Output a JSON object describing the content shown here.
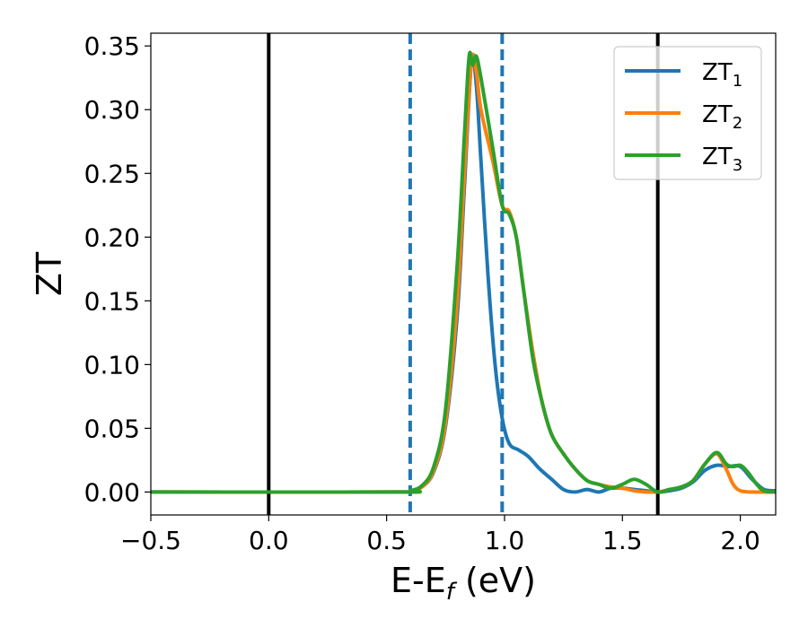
{
  "chart_data": {
    "type": "line",
    "title": "",
    "xlabel": {
      "main": "E-E",
      "sub": "f",
      "suffix": " (eV)"
    },
    "ylabel": "ZT",
    "xlim": [
      -0.5,
      2.15
    ],
    "ylim": [
      -0.018,
      0.36
    ],
    "x_ticks": [
      -0.5,
      0.0,
      0.5,
      1.0,
      1.5,
      2.0
    ],
    "x_tick_labels": [
      "−0.5",
      "0.0",
      "0.5",
      "1.0",
      "1.5",
      "2.0"
    ],
    "y_ticks": [
      0.0,
      0.05,
      0.1,
      0.15,
      0.2,
      0.25,
      0.3,
      0.35
    ],
    "y_tick_labels": [
      "0.00",
      "0.05",
      "0.10",
      "0.15",
      "0.20",
      "0.25",
      "0.30",
      "0.35"
    ],
    "grid": false,
    "legend_position": "top-right",
    "vertical_lines": [
      {
        "x": 0.0,
        "style": "solid",
        "color": "#000000"
      },
      {
        "x": 1.65,
        "style": "solid",
        "color": "#000000"
      },
      {
        "x": 0.6,
        "style": "dashed",
        "color": "#1f77b4"
      },
      {
        "x": 0.99,
        "style": "dashed",
        "color": "#1f77b4"
      }
    ],
    "series": [
      {
        "name": "ZT",
        "sub": "1",
        "color": "#1f77b4",
        "points": [
          [
            -0.5,
            0
          ],
          [
            0.55,
            0
          ],
          [
            0.6,
            0.001
          ],
          [
            0.65,
            0.004
          ],
          [
            0.7,
            0.016
          ],
          [
            0.75,
            0.052
          ],
          [
            0.8,
            0.14
          ],
          [
            0.83,
            0.24
          ],
          [
            0.86,
            0.338
          ],
          [
            0.88,
            0.32
          ],
          [
            0.9,
            0.26
          ],
          [
            0.93,
            0.17
          ],
          [
            0.96,
            0.1
          ],
          [
            0.99,
            0.058
          ],
          [
            1.02,
            0.038
          ],
          [
            1.06,
            0.033
          ],
          [
            1.1,
            0.028
          ],
          [
            1.15,
            0.018
          ],
          [
            1.2,
            0.01
          ],
          [
            1.25,
            0.002
          ],
          [
            1.3,
            0.0
          ],
          [
            1.35,
            0.002
          ],
          [
            1.4,
            0.0
          ],
          [
            1.45,
            0.003
          ],
          [
            1.5,
            0.003
          ],
          [
            1.55,
            0.002
          ],
          [
            1.6,
            0.001
          ],
          [
            1.65,
            0.0
          ],
          [
            1.7,
            0.001
          ],
          [
            1.75,
            0.003
          ],
          [
            1.8,
            0.008
          ],
          [
            1.85,
            0.017
          ],
          [
            1.9,
            0.021
          ],
          [
            1.95,
            0.02
          ],
          [
            2.0,
            0.02
          ],
          [
            2.05,
            0.01
          ],
          [
            2.1,
            0.002
          ],
          [
            2.15,
            0.001
          ]
        ]
      },
      {
        "name": "ZT",
        "sub": "2",
        "color": "#ff7f0e",
        "points": [
          [
            -0.5,
            0
          ],
          [
            0.55,
            0
          ],
          [
            0.6,
            0.001
          ],
          [
            0.65,
            0.004
          ],
          [
            0.7,
            0.017
          ],
          [
            0.75,
            0.055
          ],
          [
            0.8,
            0.15
          ],
          [
            0.83,
            0.25
          ],
          [
            0.86,
            0.338
          ],
          [
            0.88,
            0.33
          ],
          [
            0.9,
            0.3
          ],
          [
            0.95,
            0.26
          ],
          [
            0.99,
            0.225
          ],
          [
            1.02,
            0.22
          ],
          [
            1.05,
            0.2
          ],
          [
            1.08,
            0.16
          ],
          [
            1.12,
            0.11
          ],
          [
            1.16,
            0.07
          ],
          [
            1.2,
            0.045
          ],
          [
            1.25,
            0.03
          ],
          [
            1.3,
            0.018
          ],
          [
            1.35,
            0.009
          ],
          [
            1.4,
            0.006
          ],
          [
            1.45,
            0.004
          ],
          [
            1.5,
            0.003
          ],
          [
            1.55,
            0.001
          ],
          [
            1.6,
            0.0
          ],
          [
            1.65,
            0.0
          ],
          [
            1.7,
            0.002
          ],
          [
            1.75,
            0.004
          ],
          [
            1.8,
            0.009
          ],
          [
            1.85,
            0.022
          ],
          [
            1.9,
            0.03
          ],
          [
            1.94,
            0.018
          ],
          [
            1.97,
            0.006
          ],
          [
            2.0,
            0.001
          ],
          [
            2.05,
            0.0
          ],
          [
            2.15,
            0.0
          ]
        ]
      },
      {
        "name": "ZT",
        "sub": "3",
        "color": "#2ca02c",
        "points": [
          [
            -0.5,
            0
          ],
          [
            0.55,
            0
          ],
          [
            0.6,
            0.001
          ],
          [
            0.65,
            0.005
          ],
          [
            0.7,
            0.02
          ],
          [
            0.75,
            0.065
          ],
          [
            0.8,
            0.18
          ],
          [
            0.83,
            0.28
          ],
          [
            0.85,
            0.342
          ],
          [
            0.865,
            0.335
          ],
          [
            0.88,
            0.342
          ],
          [
            0.9,
            0.325
          ],
          [
            0.95,
            0.27
          ],
          [
            0.99,
            0.225
          ],
          [
            1.02,
            0.218
          ],
          [
            1.05,
            0.2
          ],
          [
            1.08,
            0.16
          ],
          [
            1.12,
            0.105
          ],
          [
            1.16,
            0.07
          ],
          [
            1.2,
            0.045
          ],
          [
            1.25,
            0.03
          ],
          [
            1.3,
            0.018
          ],
          [
            1.35,
            0.009
          ],
          [
            1.4,
            0.006
          ],
          [
            1.45,
            0.003
          ],
          [
            1.5,
            0.006
          ],
          [
            1.55,
            0.01
          ],
          [
            1.6,
            0.006
          ],
          [
            1.65,
            0.0
          ],
          [
            1.7,
            0.002
          ],
          [
            1.75,
            0.004
          ],
          [
            1.8,
            0.009
          ],
          [
            1.85,
            0.022
          ],
          [
            1.9,
            0.031
          ],
          [
            1.94,
            0.022
          ],
          [
            1.97,
            0.02
          ],
          [
            2.0,
            0.021
          ],
          [
            2.03,
            0.016
          ],
          [
            2.07,
            0.006
          ],
          [
            2.1,
            0.001
          ],
          [
            2.15,
            0.0
          ]
        ]
      }
    ]
  }
}
